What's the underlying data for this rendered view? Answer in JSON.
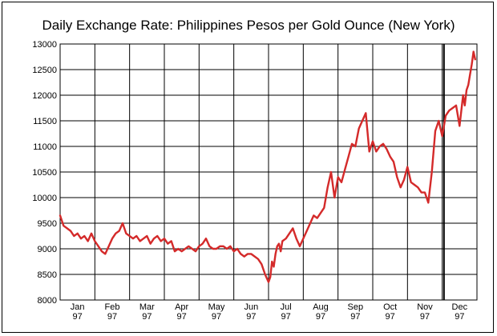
{
  "chart_data": {
    "type": "line",
    "title": "Daily Exchange Rate: Philippines Pesos per Gold Ounce (New York)",
    "xlabel": "",
    "ylabel": "",
    "ylim": [
      8000,
      13000
    ],
    "y_ticks": [
      8000,
      8500,
      9000,
      9500,
      10000,
      10500,
      11000,
      11500,
      12000,
      12500,
      13000
    ],
    "x_tick_months": [
      "Jan",
      "Feb",
      "Mar",
      "Apr",
      "May",
      "Jun",
      "Jul",
      "Aug",
      "Sep",
      "Oct",
      "Nov",
      "Dec"
    ],
    "x_tick_years": [
      "97",
      "97",
      "97",
      "97",
      "97",
      "97",
      "97",
      "97",
      "97",
      "97",
      "97",
      "97"
    ],
    "grid": true,
    "line_color": "#d42a2a",
    "series": [
      {
        "name": "",
        "x": [
          0.0,
          0.1,
          0.2,
          0.3,
          0.4,
          0.5,
          0.6,
          0.7,
          0.8,
          0.9,
          1.0,
          1.1,
          1.2,
          1.3,
          1.4,
          1.5,
          1.6,
          1.7,
          1.8,
          1.9,
          2.0,
          2.1,
          2.2,
          2.3,
          2.4,
          2.5,
          2.6,
          2.7,
          2.8,
          2.9,
          3.0,
          3.1,
          3.2,
          3.3,
          3.4,
          3.5,
          3.6,
          3.7,
          3.8,
          3.9,
          4.0,
          4.1,
          4.2,
          4.3,
          4.4,
          4.5,
          4.6,
          4.7,
          4.8,
          4.9,
          5.0,
          5.1,
          5.2,
          5.3,
          5.4,
          5.5,
          5.6,
          5.7,
          5.8,
          5.9,
          6.0,
          6.05,
          6.1,
          6.15,
          6.2,
          6.25,
          6.3,
          6.35,
          6.4,
          6.5,
          6.6,
          6.7,
          6.8,
          6.9,
          7.0,
          7.1,
          7.2,
          7.3,
          7.4,
          7.5,
          7.6,
          7.7,
          7.8,
          7.9,
          8.0,
          8.1,
          8.2,
          8.3,
          8.4,
          8.5,
          8.6,
          8.7,
          8.8,
          8.9,
          9.0,
          9.1,
          9.2,
          9.3,
          9.4,
          9.5,
          9.6,
          9.7,
          9.8,
          9.9,
          10.0,
          10.1,
          10.2,
          10.3,
          10.4,
          10.5,
          10.6,
          10.7,
          10.8,
          10.9,
          11.0,
          11.1,
          11.2,
          11.3,
          11.4,
          11.5,
          11.6,
          11.65,
          11.7,
          11.75,
          11.8,
          11.85,
          11.9,
          11.95
        ],
        "values": [
          9650,
          9450,
          9400,
          9350,
          9250,
          9300,
          9200,
          9250,
          9150,
          9300,
          9150,
          9050,
          8950,
          8900,
          9050,
          9200,
          9300,
          9350,
          9500,
          9300,
          9250,
          9200,
          9250,
          9150,
          9200,
          9250,
          9100,
          9200,
          9250,
          9150,
          9200,
          9100,
          9150,
          8950,
          9000,
          8950,
          9000,
          9050,
          9000,
          8950,
          9050,
          9100,
          9200,
          9050,
          9000,
          9000,
          9050,
          9050,
          9000,
          9050,
          8950,
          9000,
          8900,
          8850,
          8900,
          8900,
          8850,
          8800,
          8700,
          8500,
          8350,
          8450,
          8750,
          8650,
          8900,
          9050,
          9100,
          8950,
          9150,
          9200,
          9300,
          9400,
          9200,
          9050,
          9200,
          9350,
          9500,
          9650,
          9600,
          9700,
          9800,
          10200,
          10500,
          10000,
          10400,
          10300,
          10550,
          10800,
          11050,
          11000,
          11350,
          11500,
          11650,
          10900,
          11100,
          10900,
          11000,
          11050,
          10950,
          10800,
          10700,
          10400,
          10200,
          10350,
          10600,
          10300,
          10250,
          10200,
          10100,
          10100,
          9900,
          10500,
          11300,
          11500,
          11200,
          11600,
          11700,
          11750,
          11800,
          11400,
          12000,
          11800,
          12100,
          12200,
          12400,
          12600,
          12850,
          12700
        ]
      }
    ]
  }
}
